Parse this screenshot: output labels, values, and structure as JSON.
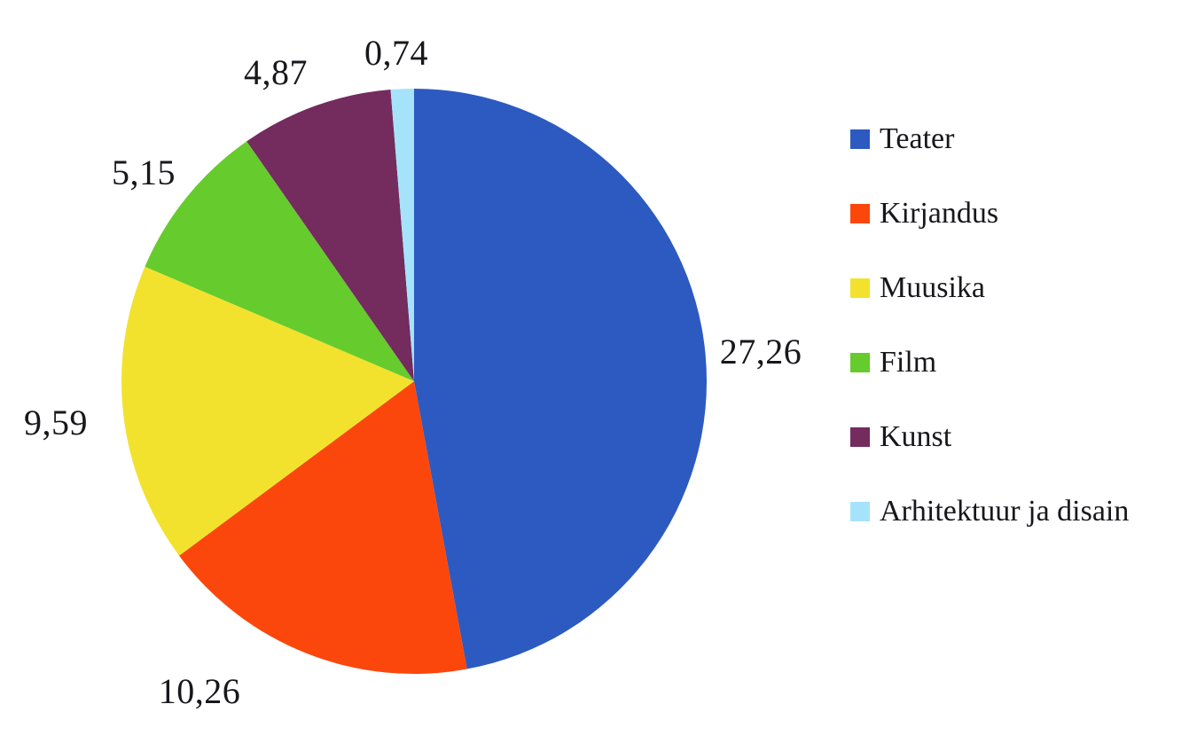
{
  "chart_data": {
    "type": "pie",
    "title": "",
    "categories": [
      "Teater",
      "Kirjandus",
      "Muusika",
      "Film",
      "Kunst",
      "Arhitektuur ja disain"
    ],
    "values": [
      27.26,
      10.26,
      9.59,
      5.15,
      4.87,
      0.74
    ],
    "value_labels": [
      "27,26",
      "10,26",
      "9,59",
      "5,15",
      "4,87",
      "0,74"
    ],
    "colors": [
      "#2d5ac0",
      "#fb470c",
      "#f2e22e",
      "#66cb2d",
      "#742b5e",
      "#a5e3fa"
    ],
    "total": 57.87,
    "start_angle_deg": 0,
    "direction": "clockwise",
    "legend_position": "right",
    "decimal_separator": ",",
    "background": "#ffffff",
    "label_color": "#17171c"
  }
}
